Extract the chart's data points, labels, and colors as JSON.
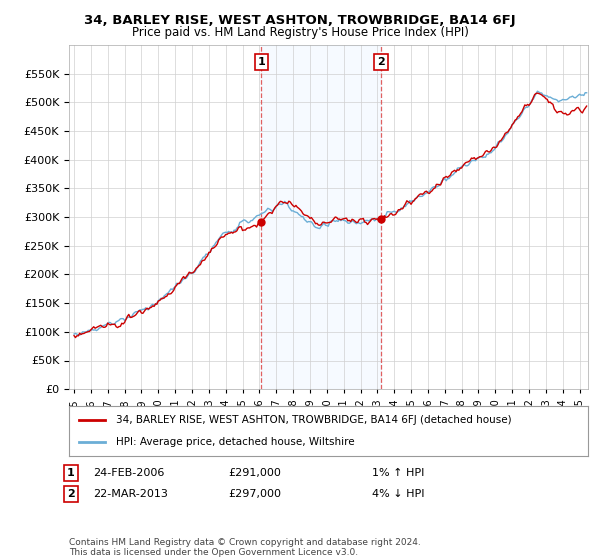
{
  "title": "34, BARLEY RISE, WEST ASHTON, TROWBRIDGE, BA14 6FJ",
  "subtitle": "Price paid vs. HM Land Registry's House Price Index (HPI)",
  "legend_line1": "34, BARLEY RISE, WEST ASHTON, TROWBRIDGE, BA14 6FJ (detached house)",
  "legend_line2": "HPI: Average price, detached house, Wiltshire",
  "annotation1_label": "1",
  "annotation1_date": "24-FEB-2006",
  "annotation1_price": "£291,000",
  "annotation1_hpi": "1% ↑ HPI",
  "annotation1_year": 2006.12,
  "annotation1_value": 291000,
  "annotation2_label": "2",
  "annotation2_date": "22-MAR-2013",
  "annotation2_price": "£297,000",
  "annotation2_hpi": "4% ↓ HPI",
  "annotation2_year": 2013.22,
  "annotation2_value": 297000,
  "hpi_color": "#6baed6",
  "price_color": "#cc0000",
  "dashed_color": "#e06060",
  "shade_color": "#ddeeff",
  "background_color": "#ffffff",
  "plot_bg_color": "#ffffff",
  "ylim": [
    0,
    600000
  ],
  "yticks": [
    0,
    50000,
    100000,
    150000,
    200000,
    250000,
    300000,
    350000,
    400000,
    450000,
    500000,
    550000
  ],
  "xlim_min": 1994.7,
  "xlim_max": 2025.5,
  "footnote": "Contains HM Land Registry data © Crown copyright and database right 2024.\nThis data is licensed under the Open Government Licence v3.0."
}
